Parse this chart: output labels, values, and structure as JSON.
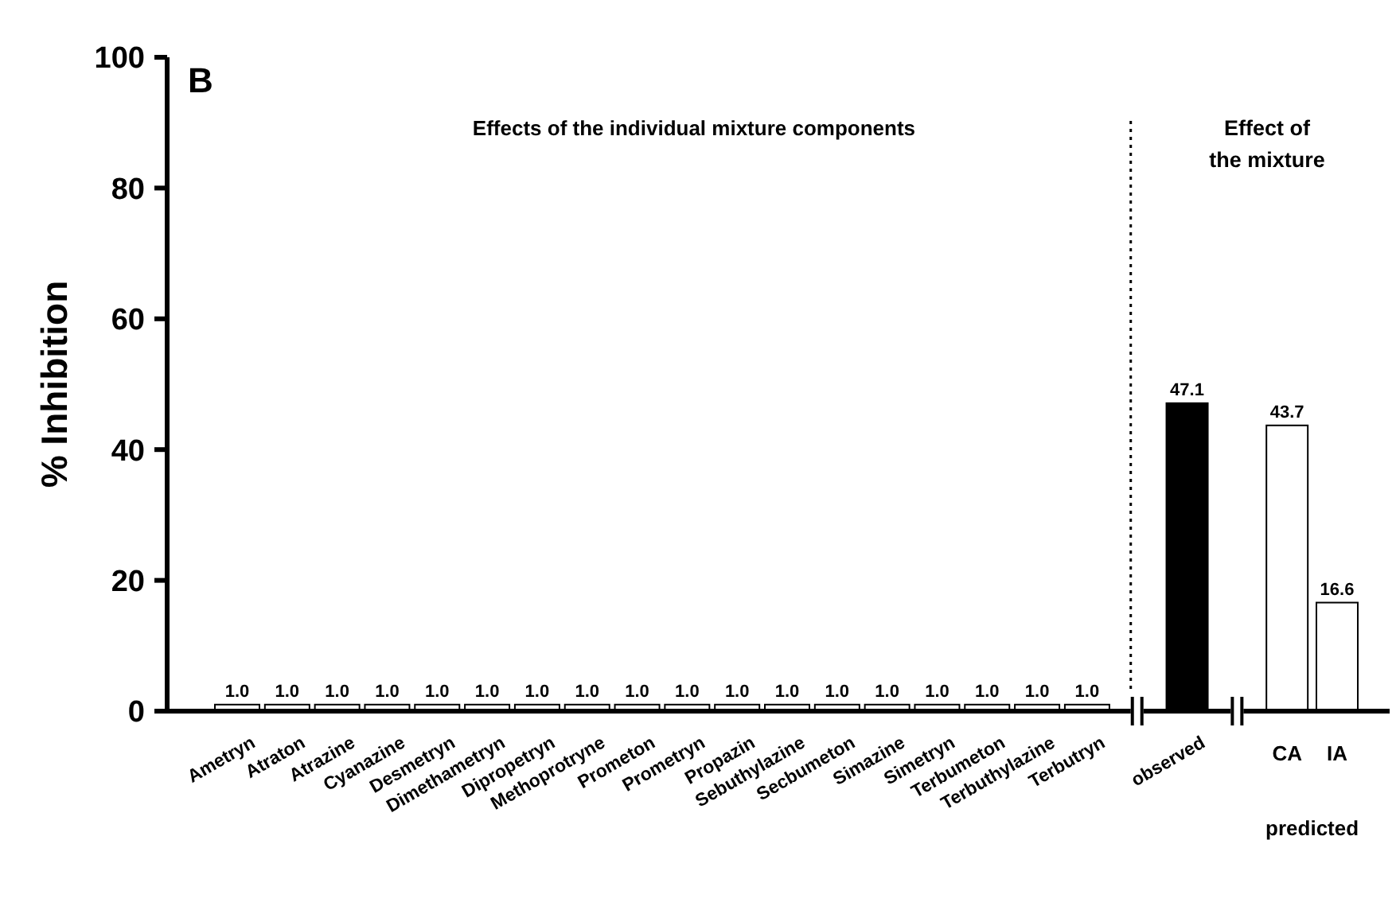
{
  "chart_data": {
    "type": "bar",
    "ylabel": "% Inhibition",
    "categories": [
      "Ametryn",
      "Atraton",
      "Atrazine",
      "Cyanazine",
      "Desmetryn",
      "Dimethametryn",
      "Dipropetryn",
      "Methoprotryne",
      "Prometon",
      "Prometryn",
      "Propazin",
      "Sebuthylazine",
      "Secbumeton",
      "Simazine",
      "Simetryn",
      "Terbumeton",
      "Terbuthylazine",
      "Terbutryn",
      null,
      "observed",
      null,
      "CA",
      "IA"
    ],
    "values": [
      1,
      1,
      1,
      1,
      1,
      1,
      1,
      1,
      1,
      1,
      1,
      1,
      1,
      1,
      1,
      1,
      1,
      1,
      null,
      47.1,
      null,
      43.7,
      16.6
    ],
    "value_labels": [
      "1.0",
      "1.0",
      "1.0",
      "1.0",
      "1.0",
      "1.0",
      "1.0",
      "1.0",
      "1.0",
      "1.0",
      "1.0",
      "1.0",
      "1.0",
      "1.0",
      "1.0",
      "1.0",
      "1.0",
      "1.0",
      null,
      "47.1",
      null,
      "43.7",
      "16.6"
    ],
    "colors": [
      "#ffffff",
      "#ffffff",
      "#ffffff",
      "#ffffff",
      "#ffffff",
      "#ffffff",
      "#ffffff",
      "#ffffff",
      "#ffffff",
      "#ffffff",
      "#ffffff",
      "#ffffff",
      "#ffffff",
      "#ffffff",
      "#ffffff",
      "#ffffff",
      "#ffffff",
      "#ffffff",
      null,
      "#000000",
      null,
      "#ffffff",
      "#ffffff"
    ],
    "ylim": [
      0,
      100
    ],
    "yticks": [
      0,
      20,
      40,
      60,
      80,
      100
    ],
    "grid": false,
    "ref_lines": [
      {
        "axis": "x",
        "value": null,
        "line_style": "dotted"
      }
    ],
    "annotations": [
      "B",
      "Effects of the individual mixture components",
      "Effect of\nthe mixture",
      "predicted"
    ]
  }
}
